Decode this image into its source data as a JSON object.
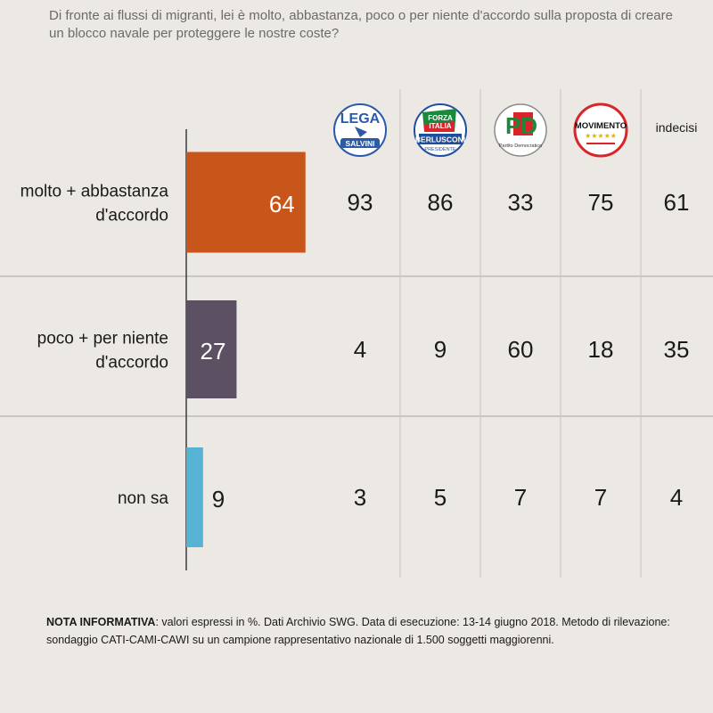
{
  "question": "Di fronte ai flussi di migranti, lei è molto, abbastanza, poco o per niente d'accordo sulla proposta di creare un blocco navale per proteggere le nostre coste?",
  "chart_data": {
    "type": "bar",
    "orientation": "horizontal",
    "unit": "%",
    "categories": [
      [
        "molto + abbastanza",
        "d'accordo"
      ],
      [
        "poco + per niente",
        "d'accordo"
      ],
      [
        "non sa"
      ]
    ],
    "values": [
      64,
      27,
      9
    ],
    "bar_colors": [
      "#c8561a",
      "#5b5163",
      "#56b3d3"
    ],
    "value_label_colors": [
      "#ffffff",
      "#ffffff",
      "#1a1a1a"
    ],
    "xlim": [
      0,
      100
    ],
    "breakdown": {
      "columns": [
        {
          "logo": "lega-logo",
          "logo_text": [
            "LEGA",
            "SALVINI"
          ]
        },
        {
          "logo": "forza-italia-logo",
          "logo_text": [
            "FORZA",
            "ITALIA",
            "BERLUSCONI",
            "PRESIDENTE"
          ]
        },
        {
          "logo": "pd-logo",
          "logo_text": [
            "PD",
            "Partito Democratico"
          ]
        },
        {
          "logo": "m5s-logo",
          "logo_text": [
            "MOVIMENTO",
            "★★★★★"
          ]
        },
        {
          "label": "indecisi"
        }
      ],
      "rows": [
        [
          93,
          86,
          33,
          75,
          61
        ],
        [
          4,
          9,
          60,
          18,
          35
        ],
        [
          3,
          5,
          7,
          7,
          4
        ]
      ]
    }
  },
  "note": {
    "label": "NOTA INFORMATIVA",
    "text": ": valori espressi in %. Dati Archivio SWG. Data di esecuzione: 13-14 giugno 2018. Metodo di rilevazione: sondaggio CATI-CAMI-CAWI su un campione rappresentativo nazionale di 1.500 soggetti maggiorenni."
  }
}
